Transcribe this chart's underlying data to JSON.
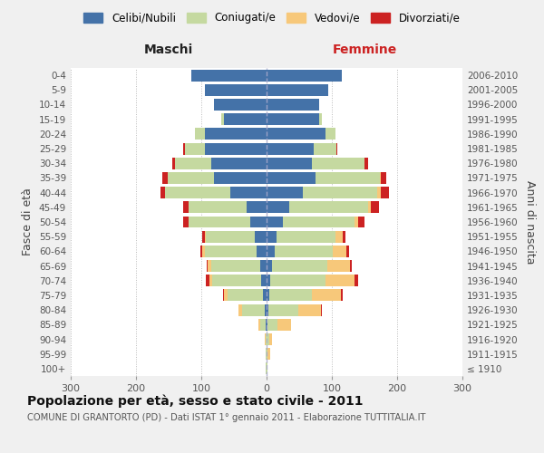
{
  "age_groups": [
    "100+",
    "95-99",
    "90-94",
    "85-89",
    "80-84",
    "75-79",
    "70-74",
    "65-69",
    "60-64",
    "55-59",
    "50-54",
    "45-49",
    "40-44",
    "35-39",
    "30-34",
    "25-29",
    "20-24",
    "15-19",
    "10-14",
    "5-9",
    "0-4"
  ],
  "birth_years": [
    "≤ 1910",
    "1911-1915",
    "1916-1920",
    "1921-1925",
    "1926-1930",
    "1931-1935",
    "1936-1940",
    "1941-1945",
    "1946-1950",
    "1951-1955",
    "1956-1960",
    "1961-1965",
    "1966-1970",
    "1971-1975",
    "1976-1980",
    "1981-1985",
    "1986-1990",
    "1991-1995",
    "1996-2000",
    "2001-2005",
    "2006-2010"
  ],
  "male_celibi": [
    0,
    0,
    0,
    2,
    3,
    5,
    8,
    10,
    15,
    18,
    25,
    30,
    55,
    80,
    85,
    95,
    95,
    65,
    80,
    95,
    115
  ],
  "male_coniugati": [
    1,
    1,
    2,
    8,
    35,
    55,
    75,
    75,
    80,
    75,
    95,
    90,
    100,
    72,
    55,
    30,
    15,
    5,
    0,
    0,
    0
  ],
  "male_vedovi": [
    0,
    0,
    1,
    3,
    5,
    5,
    5,
    5,
    3,
    2,
    0,
    0,
    0,
    0,
    0,
    0,
    0,
    0,
    0,
    0,
    0
  ],
  "male_divorziati": [
    0,
    0,
    0,
    0,
    0,
    2,
    5,
    2,
    3,
    3,
    8,
    8,
    8,
    8,
    5,
    3,
    0,
    0,
    0,
    0,
    0
  ],
  "female_nubili": [
    0,
    0,
    0,
    2,
    3,
    4,
    5,
    8,
    12,
    15,
    25,
    35,
    55,
    75,
    70,
    72,
    90,
    80,
    80,
    95,
    115
  ],
  "female_coniugate": [
    1,
    2,
    4,
    15,
    45,
    65,
    85,
    85,
    90,
    90,
    110,
    120,
    115,
    98,
    80,
    35,
    15,
    5,
    0,
    0,
    0
  ],
  "female_vedove": [
    1,
    3,
    5,
    20,
    35,
    45,
    45,
    35,
    20,
    12,
    5,
    5,
    5,
    2,
    0,
    0,
    0,
    0,
    0,
    0,
    0
  ],
  "female_divorziate": [
    0,
    0,
    0,
    0,
    2,
    3,
    5,
    3,
    5,
    4,
    10,
    12,
    12,
    8,
    5,
    2,
    0,
    0,
    0,
    0,
    0
  ],
  "color_celibi": "#4472a8",
  "color_coniugati": "#c5d9a0",
  "color_vedovi": "#f7c87a",
  "color_divorziati": "#cc2222",
  "xlim": 300,
  "title": "Popolazione per età, sesso e stato civile - 2011",
  "subtitle": "COMUNE DI GRANTORTO (PD) - Dati ISTAT 1° gennaio 2011 - Elaborazione TUTTITALIA.IT",
  "label_maschi": "Maschi",
  "label_femmine": "Femmine",
  "ylabel_left": "Fasce di età",
  "ylabel_right": "Anni di nascita",
  "legend_labels": [
    "Celibi/Nubili",
    "Coniugati/e",
    "Vedovi/e",
    "Divorziati/e"
  ],
  "bg_color": "#f0f0f0",
  "plot_bg": "#ffffff",
  "femmine_label_color": "#cc2222"
}
